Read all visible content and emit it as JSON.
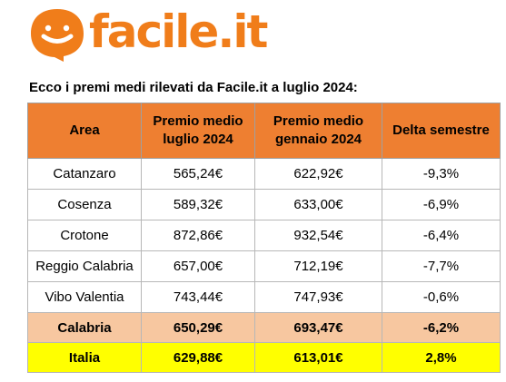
{
  "logo": {
    "text": "facile.it",
    "brand_color": "#f07d1a"
  },
  "subtitle": "Ecco i premi medi rilevati da Facile.it a luglio 2024:",
  "table": {
    "header_color": "#ee7f31",
    "headers": [
      "Area",
      "Premio medio luglio 2024",
      "Premio medio gennaio 2024",
      "Delta semestre"
    ],
    "rows": [
      [
        "Catanzaro",
        "565,24€",
        "622,92€",
        "-9,3%"
      ],
      [
        "Cosenza",
        "589,32€",
        "633,00€",
        "-6,9%"
      ],
      [
        "Crotone",
        "872,86€",
        "932,54€",
        "-6,4%"
      ],
      [
        "Reggio Calabria",
        "657,00€",
        "712,19€",
        "-7,7%"
      ],
      [
        "Vibo Valentia",
        "743,44€",
        "747,93€",
        "-0,6%"
      ]
    ],
    "calabria": {
      "color": "#f7c7a0",
      "cells": [
        "Calabria",
        "650,29€",
        "693,47€",
        "-6,2%"
      ]
    },
    "italia": {
      "color": "#ffff00",
      "cells": [
        "Italia",
        "629,88€",
        "613,01€",
        "2,8%"
      ]
    }
  }
}
